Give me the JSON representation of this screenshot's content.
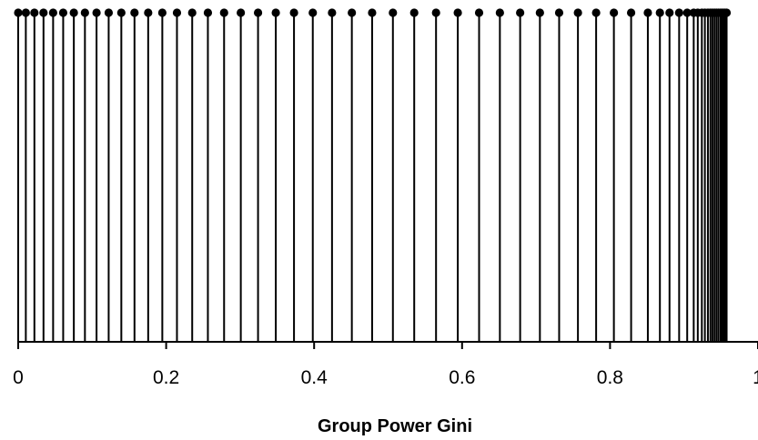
{
  "chart_data": {
    "type": "scatter",
    "style": "stem (lollipop) plot",
    "title": "",
    "xlabel": "Group Power Gini",
    "ylabel": "",
    "xlim": [
      0,
      1
    ],
    "x_ticks": [
      0,
      0.2,
      0.4,
      0.6,
      0.8,
      1
    ],
    "x_tick_labels": [
      "0",
      "0.2",
      "0.4",
      "0.6",
      "0.8",
      "1"
    ],
    "ylim": [
      0,
      1
    ],
    "grid": false,
    "legend": "none",
    "colors": {
      "stems": "#000000",
      "markers": "#000000",
      "axis": "#000000"
    },
    "series": [
      {
        "x": [
          0,
          0.0103,
          0.0219,
          0.0342,
          0.0472,
          0.0608,
          0.0752,
          0.0902,
          0.1059,
          0.1223,
          0.1394,
          0.1572,
          0.1757,
          0.1948,
          0.2146,
          0.2352,
          0.2564,
          0.2783,
          0.3009,
          0.3242,
          0.3482,
          0.3728,
          0.3982,
          0.4242,
          0.451,
          0.4784,
          0.5065,
          0.5353,
          0.5648,
          0.5942,
          0.623,
          0.6511,
          0.6785,
          0.7052,
          0.7312,
          0.7566,
          0.7812,
          0.8052,
          0.8285,
          0.8511,
          0.8674,
          0.8804,
          0.8934,
          0.9043,
          0.9131,
          0.9186,
          0.9241,
          0.9282,
          0.9323,
          0.9357,
          0.9384,
          0.9412,
          0.9439,
          0.9466,
          0.9494,
          0.9514,
          0.9535,
          0.9556,
          0.9576
        ],
        "y": [
          1,
          1,
          1,
          1,
          1,
          1,
          1,
          1,
          1,
          1,
          1,
          1,
          1,
          1,
          1,
          1,
          1,
          1,
          1,
          1,
          1,
          1,
          1,
          1,
          1,
          1,
          1,
          1,
          1,
          1,
          1,
          1,
          1,
          1,
          1,
          1,
          1,
          1,
          1,
          1,
          1,
          1,
          1,
          1,
          1,
          1,
          1,
          1,
          1,
          1,
          1,
          1,
          1,
          1,
          1,
          1,
          1,
          1,
          1
        ]
      }
    ]
  }
}
